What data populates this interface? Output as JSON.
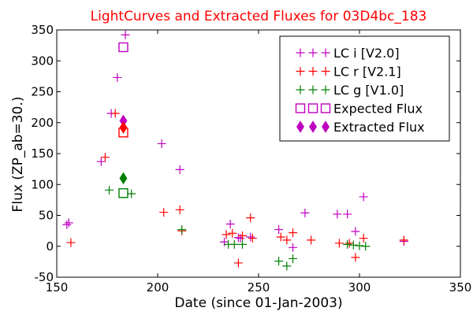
{
  "chart_data": {
    "type": "scatter",
    "title": "LightCurves and Extracted Fluxes for 03D4bc_183",
    "title_color": "#ff0000",
    "xlabel": "Date (since 01-Jan-2003)",
    "ylabel": "Flux (ZP_ab=30.)",
    "xlim": [
      150,
      350
    ],
    "ylim": [
      -50,
      350
    ],
    "xticks": [
      150,
      200,
      250,
      300,
      350
    ],
    "yticks": [
      -50,
      0,
      50,
      100,
      150,
      200,
      250,
      300,
      350
    ],
    "grid": false,
    "legend_position": "top-right",
    "series": [
      {
        "name": "LC i [V2.0]",
        "marker": "plus",
        "color": "#bf00bf",
        "points": [
          [
            155,
            35
          ],
          [
            156,
            38
          ],
          [
            172,
            137
          ],
          [
            177,
            215
          ],
          [
            180,
            273
          ],
          [
            184,
            342
          ],
          [
            202,
            166
          ],
          [
            211,
            124
          ],
          [
            233,
            7
          ],
          [
            236,
            36
          ],
          [
            240,
            14
          ],
          [
            241,
            13
          ],
          [
            246,
            15
          ],
          [
            260,
            27
          ],
          [
            267,
            -2
          ],
          [
            273,
            54
          ],
          [
            289,
            52
          ],
          [
            294,
            52
          ],
          [
            298,
            24
          ],
          [
            302,
            80
          ],
          [
            322,
            8
          ]
        ]
      },
      {
        "name": "LC r [V2.1]",
        "marker": "plus",
        "color": "#ff0000",
        "points": [
          [
            157,
            6
          ],
          [
            174,
            144
          ],
          [
            179,
            215
          ],
          [
            203,
            55
          ],
          [
            211,
            59
          ],
          [
            212,
            25
          ],
          [
            234,
            19
          ],
          [
            237,
            21
          ],
          [
            240,
            -27
          ],
          [
            242,
            17
          ],
          [
            246,
            46
          ],
          [
            247,
            13
          ],
          [
            261,
            15
          ],
          [
            264,
            10
          ],
          [
            267,
            22
          ],
          [
            276,
            10
          ],
          [
            290,
            5
          ],
          [
            295,
            5
          ],
          [
            298,
            -18
          ],
          [
            302,
            13
          ],
          [
            322,
            10
          ]
        ]
      },
      {
        "name": "LC g [V1.0]",
        "marker": "plus",
        "color": "#008000",
        "points": [
          [
            176,
            91
          ],
          [
            187,
            85
          ],
          [
            212,
            27
          ],
          [
            235,
            3
          ],
          [
            238,
            3
          ],
          [
            242,
            3
          ],
          [
            260,
            -24
          ],
          [
            264,
            -32
          ],
          [
            267,
            -20
          ],
          [
            294,
            3
          ],
          [
            297,
            2
          ],
          [
            300,
            1
          ],
          [
            303,
            0
          ]
        ]
      },
      {
        "name": "Expected Flux",
        "marker": "square",
        "color": "#bf00bf",
        "points": [
          [
            183,
            322
          ],
          [
            183,
            184
          ],
          [
            183,
            86
          ]
        ],
        "point_colors": [
          "#bf00bf",
          "#ff0000",
          "#008000"
        ]
      },
      {
        "name": "Extracted Flux",
        "marker": "diamond",
        "color": "#bf00bf",
        "points": [
          [
            183,
            203
          ],
          [
            183,
            192
          ],
          [
            183,
            110
          ]
        ],
        "point_colors": [
          "#bf00bf",
          "#ff0000",
          "#008000"
        ]
      }
    ]
  }
}
